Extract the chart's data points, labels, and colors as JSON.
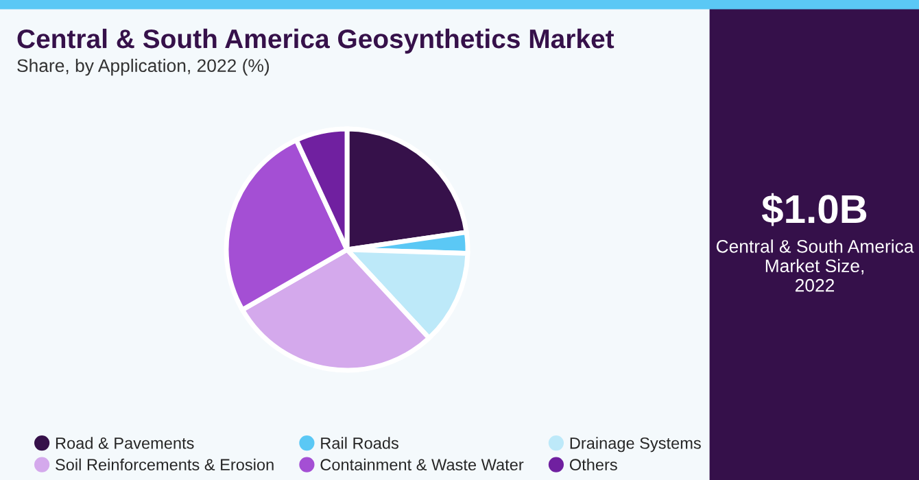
{
  "chart_data": {
    "type": "pie",
    "title": "Central & South America Geosynthetics Market",
    "subtitle": "Share, by Application, 2022 (%)",
    "categories": [
      "Road & Pavements",
      "Rail Roads",
      "Drainage Systems",
      "Soil Reinforcements & Erosion",
      "Containment & Waste Water",
      "Others"
    ],
    "values": [
      22.7,
      2.8,
      12.6,
      28.6,
      26.4,
      6.9
    ],
    "colors": [
      "#36114a",
      "#5bc8f5",
      "#bde9f9",
      "#d4a9ec",
      "#a44fd4",
      "#7020a0"
    ],
    "legend": "bottom",
    "annotations": [
      "$1.0B",
      "Central & South America\nMarket Size,\n2022"
    ]
  }
}
